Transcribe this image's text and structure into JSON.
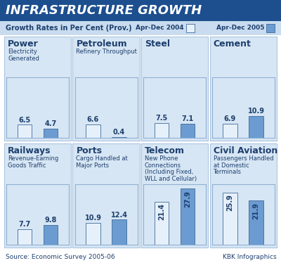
{
  "title": "INFRASTRUCTURE GROWTH",
  "subtitle": "Growth Rates in Per Cent (Prov.)",
  "source": "Source: Economic Survey 2005-06",
  "credit": "KBK Infographics",
  "chart_data": [
    {
      "type": "bar",
      "title": "Power",
      "subtitle": "Electricity Generated",
      "series": [
        {
          "name": "Apr-Dec 2004",
          "color": "#e6f0fa",
          "values": [
            6.5
          ]
        },
        {
          "name": "Apr-Dec 2005",
          "color": "#6b9bd1",
          "values": [
            4.7
          ]
        }
      ],
      "ylim": [
        0,
        30
      ],
      "yticks": [],
      "data_labels": true,
      "tick_labels": false
    },
    {
      "type": "bar",
      "title": "Petroleum",
      "subtitle": "Refinery Throughput",
      "series": [
        {
          "name": "Apr-Dec 2004",
          "color": "#e6f0fa",
          "values": [
            6.6
          ]
        },
        {
          "name": "Apr-Dec 2005",
          "color": "#6b9bd1",
          "values": [
            0.4
          ]
        }
      ],
      "ylim": [
        0,
        30
      ],
      "yticks": [],
      "data_labels": true,
      "tick_labels": false
    },
    {
      "type": "bar",
      "title": "Steel",
      "subtitle": "",
      "series": [
        {
          "name": "Apr-Dec 2004",
          "color": "#e6f0fa",
          "values": [
            7.5
          ]
        },
        {
          "name": "Apr-Dec 2005",
          "color": "#6b9bd1",
          "values": [
            7.1
          ]
        }
      ],
      "ylim": [
        0,
        30
      ],
      "yticks": [],
      "data_labels": true,
      "tick_labels": false
    },
    {
      "type": "bar",
      "title": "Cement",
      "subtitle": "",
      "series": [
        {
          "name": "Apr-Dec 2004",
          "color": "#e6f0fa",
          "values": [
            6.9
          ]
        },
        {
          "name": "Apr-Dec 2005",
          "color": "#6b9bd1",
          "values": [
            10.9
          ]
        }
      ],
      "ylim": [
        0,
        30
      ],
      "yticks": [],
      "data_labels": true,
      "tick_labels": false
    },
    {
      "type": "bar",
      "title": "Railways",
      "subtitle": "Revenue-Earning Goods Traffic",
      "series": [
        {
          "name": "Apr-Dec 2004",
          "color": "#e6f0fa",
          "values": [
            7.7
          ]
        },
        {
          "name": "Apr-Dec 2005",
          "color": "#6b9bd1",
          "values": [
            9.8
          ]
        }
      ],
      "ylim": [
        0,
        30
      ],
      "yticks": [],
      "data_labels": true,
      "tick_labels": false
    },
    {
      "type": "bar",
      "title": "Ports",
      "subtitle": "Cargo Handled at Major Ports",
      "series": [
        {
          "name": "Apr-Dec 2004",
          "color": "#e6f0fa",
          "values": [
            10.9
          ]
        },
        {
          "name": "Apr-Dec 2005",
          "color": "#6b9bd1",
          "values": [
            12.4
          ]
        }
      ],
      "ylim": [
        0,
        30
      ],
      "yticks": [],
      "data_labels": true,
      "tick_labels": false
    },
    {
      "type": "bar",
      "title": "Telecom",
      "subtitle": "New Phone Connections (Including Fixed, WLL and Cellular)",
      "series": [
        {
          "name": "Apr-Dec 2004",
          "color": "#e6f0fa",
          "values": [
            21.4
          ]
        },
        {
          "name": "Apr-Dec 2005",
          "color": "#6b9bd1",
          "values": [
            27.9
          ]
        }
      ],
      "ylim": [
        0,
        30
      ],
      "yticks": [],
      "data_labels": true,
      "tick_labels": false
    },
    {
      "type": "bar",
      "title": "Civil Aviation",
      "subtitle": "Passengers Handled at Domestic Terminals",
      "series": [
        {
          "name": "Apr-Dec 2004",
          "color": "#e6f0fa",
          "values": [
            25.9
          ]
        },
        {
          "name": "Apr-Dec 2005",
          "color": "#6b9bd1",
          "values": [
            21.9
          ]
        }
      ],
      "ylim": [
        0,
        30
      ],
      "yticks": [],
      "data_labels": true,
      "tick_labels": false
    }
  ]
}
